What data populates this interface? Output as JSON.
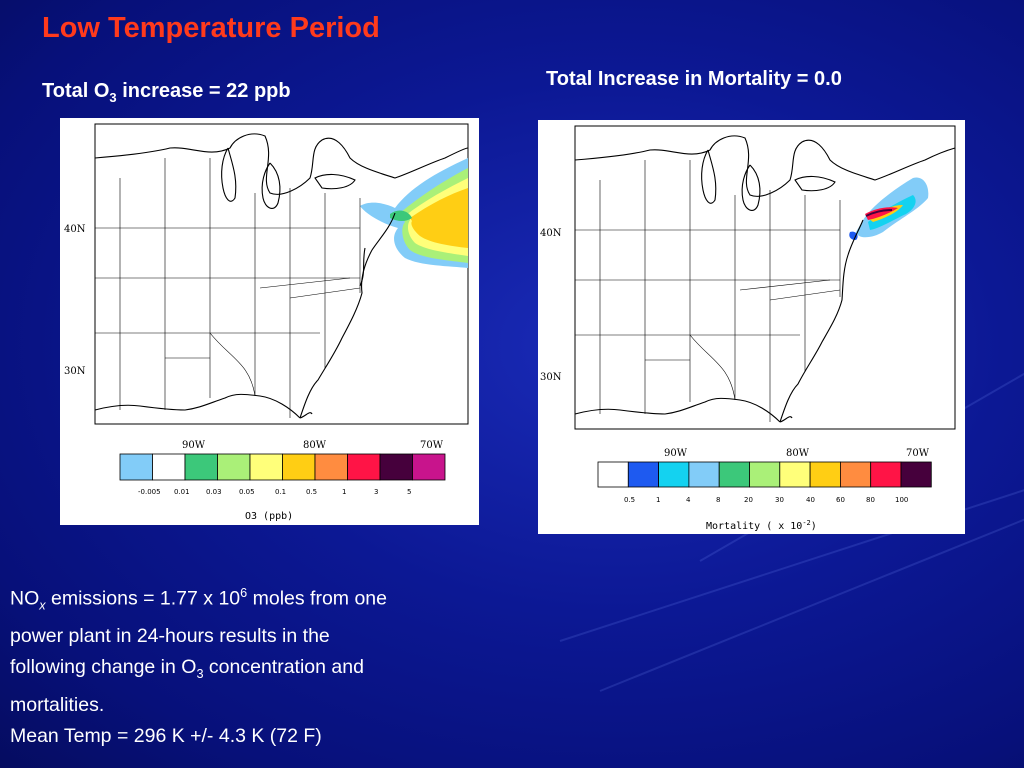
{
  "slide": {
    "title": "Low Temperature Period",
    "left_heading": {
      "pre": "Total O",
      "sub": "3",
      "post": " increase = 22 ppb"
    },
    "right_heading": "Total Increase in Mortality = 0.0",
    "caption": {
      "line1_pre": "NO",
      "line1_sub": "x",
      "line1_mid": " emissions = 1.77 x 10",
      "line1_sup": "6",
      "line1_post": " moles from one",
      "line2": "power plant in 24-hours results in the",
      "line3_pre": "following change in O",
      "line3_sub": "3",
      "line3_post": " concentration and",
      "line4": "mortalities.",
      "line5": "Mean Temp = 296 K +/- 4.3 K  (72 F)"
    }
  },
  "left_map": {
    "lat_labels": [
      "40N",
      "30N"
    ],
    "lon_labels": [
      "90W",
      "80W",
      "70W"
    ],
    "colorbar": {
      "colors": [
        "#82ccf8",
        "#ffffff",
        "#3cc87a",
        "#aaf078",
        "#ffff7a",
        "#ffce14",
        "#ff8c40",
        "#ff1446",
        "#46003c",
        "#c8148c"
      ],
      "tick_labels": [
        "-0.005",
        "0.01",
        "0.03",
        "0.05",
        "0.1",
        "0.5",
        "1",
        "3",
        "5"
      ],
      "title": "O3 (ppb)"
    }
  },
  "right_map": {
    "lat_labels": [
      "40N",
      "30N"
    ],
    "lon_labels": [
      "90W",
      "80W",
      "70W"
    ],
    "colorbar": {
      "colors": [
        "#ffffff",
        "#1e5af0",
        "#14d2f0",
        "#82ccf8",
        "#3cc87a",
        "#aaf078",
        "#ffff7a",
        "#ffce14",
        "#ff8c40",
        "#ff1446",
        "#46003c"
      ],
      "tick_labels": [
        "0.5",
        "1",
        "4",
        "8",
        "20",
        "30",
        "40",
        "60",
        "80",
        "100"
      ],
      "title": "Mortality ( x 10",
      "title_sup": "-2",
      "title_end": ")"
    }
  }
}
